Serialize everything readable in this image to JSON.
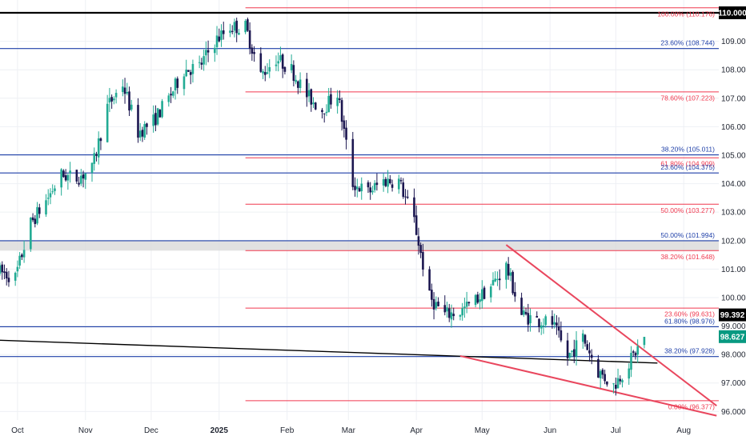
{
  "chart_data": {
    "type": "candlestick",
    "title": "",
    "ylim": [
      95.7,
      110.45
    ],
    "xlim": [
      "2024-09-23",
      "2025-08-17"
    ],
    "y_ticks": [
      "96.000",
      "97.000",
      "98.000",
      "99.000",
      "100.000",
      "101.000",
      "102.000",
      "103.000",
      "104.000",
      "105.000",
      "106.000",
      "107.000",
      "108.000",
      "109.000"
    ],
    "y_tick_values": [
      96,
      97,
      98,
      99,
      100,
      101,
      102,
      103,
      104,
      105,
      106,
      107,
      108,
      109
    ],
    "x_ticks": [
      {
        "label": "Oct",
        "date": "2024-10-01",
        "bold": false
      },
      {
        "label": "Nov",
        "date": "2024-11-01",
        "bold": false
      },
      {
        "label": "Dec",
        "date": "2024-12-01",
        "bold": false
      },
      {
        "label": "2025",
        "date": "2025-01-01",
        "bold": true
      },
      {
        "label": "Feb",
        "date": "2025-02-01",
        "bold": false
      },
      {
        "label": "Mar",
        "date": "2025-03-01",
        "bold": false
      },
      {
        "label": "Apr",
        "date": "2025-04-01",
        "bold": false
      },
      {
        "label": "May",
        "date": "2025-05-01",
        "bold": false
      },
      {
        "label": "Jun",
        "date": "2025-06-01",
        "bold": false
      },
      {
        "label": "Jul",
        "date": "2025-07-01",
        "bold": false
      },
      {
        "label": "Aug",
        "date": "2025-08-01",
        "bold": false
      }
    ],
    "price_path": [
      [
        "2024-09-23",
        100.9
      ],
      [
        "2024-09-30",
        100.7
      ],
      [
        "2024-10-07",
        102.6
      ],
      [
        "2024-10-14",
        103.4
      ],
      [
        "2024-10-21",
        104.3
      ],
      [
        "2024-10-28",
        104.2
      ],
      [
        "2024-11-04",
        104.5
      ],
      [
        "2024-11-11",
        106.7
      ],
      [
        "2024-11-18",
        107.5
      ],
      [
        "2024-11-25",
        105.8
      ],
      [
        "2024-12-02",
        106.2
      ],
      [
        "2024-12-09",
        107.0
      ],
      [
        "2024-12-16",
        108.0
      ],
      [
        "2024-12-23",
        108.1
      ],
      [
        "2024-12-30",
        109.0
      ],
      [
        "2025-01-06",
        109.5
      ],
      [
        "2025-01-13",
        109.5
      ],
      [
        "2025-01-20",
        107.8
      ],
      [
        "2025-01-27",
        108.4
      ],
      [
        "2025-02-03",
        108.0
      ],
      [
        "2025-02-10",
        107.1
      ],
      [
        "2025-02-17",
        106.6
      ],
      [
        "2025-02-24",
        107.2
      ],
      [
        "2025-03-03",
        104.0
      ],
      [
        "2025-03-10",
        103.7
      ],
      [
        "2025-03-17",
        104.1
      ],
      [
        "2025-03-24",
        104.1
      ],
      [
        "2025-03-31",
        102.7
      ],
      [
        "2025-04-07",
        100.0
      ],
      [
        "2025-04-14",
        99.4
      ],
      [
        "2025-04-21",
        99.5
      ],
      [
        "2025-04-28",
        99.9
      ],
      [
        "2025-05-05",
        100.4
      ],
      [
        "2025-05-12",
        101.1
      ],
      [
        "2025-05-19",
        99.4
      ],
      [
        "2025-05-26",
        99.2
      ],
      [
        "2025-06-02",
        99.1
      ],
      [
        "2025-06-09",
        97.9
      ],
      [
        "2025-06-16",
        98.6
      ],
      [
        "2025-06-23",
        97.4
      ],
      [
        "2025-06-30",
        96.9
      ],
      [
        "2025-07-07",
        97.7
      ],
      [
        "2025-07-14",
        98.6
      ]
    ],
    "candle_colors": {
      "up": "#22ab94",
      "down": "#1b1650"
    },
    "fib_levels_red": [
      {
        "label": "100.00% (110.176)",
        "value": 110.176,
        "from": "2025-01-13"
      },
      {
        "label": "78.60% (107.223)",
        "value": 107.223,
        "from": "2025-01-13"
      },
      {
        "label": "61.80% (104.909)",
        "value": 104.909,
        "from": "2025-01-13"
      },
      {
        "label": "50.00% (103.277)",
        "value": 103.277,
        "from": "2025-01-13"
      },
      {
        "label": "38.20% (101.648)",
        "value": 101.648,
        "from": "2025-01-13"
      },
      {
        "label": "23.60% (99.631)",
        "value": 99.631,
        "from": "2025-01-13"
      },
      {
        "label": "0.00% (96.377)",
        "value": 96.377,
        "from": "2025-01-13"
      }
    ],
    "fib_levels_blue": [
      {
        "label": "23.60% (108.744)",
        "value": 108.744
      },
      {
        "label": "38.20% (105.011)",
        "value": 105.011
      },
      {
        "label": "23.60% (104.375)",
        "value": 104.375
      },
      {
        "label": "50.00% (101.994)",
        "value": 101.994
      },
      {
        "label": "61.80% (98.976)",
        "value": 98.976
      },
      {
        "label": "38.20% (97.928)",
        "value": 97.928
      }
    ],
    "resistance_zone": [
      101.648,
      101.994
    ],
    "horizontal_black": {
      "value": 110.0
    },
    "trendline_black": {
      "from": [
        "2024-09-23",
        98.5
      ],
      "to": [
        "2025-07-20",
        97.7
      ]
    },
    "wedge_upper": {
      "from": [
        "2025-05-12",
        101.85
      ],
      "to": [
        "2025-08-16",
        96.2
      ]
    },
    "wedge_lower": {
      "from": [
        "2025-04-21",
        97.95
      ],
      "to": [
        "2025-08-16",
        95.85
      ]
    },
    "price_tags": [
      {
        "label": "110.000",
        "value": 110.0,
        "bg": "#000000",
        "fg": "#ffffff"
      },
      {
        "label": "99.392",
        "value": 99.392,
        "bg": "#000000",
        "fg": "#ffffff"
      },
      {
        "label": "98.627",
        "value": 98.627,
        "bg": "#089981",
        "fg": "#ffffff"
      }
    ],
    "colors": {
      "fib_red": "#f0394f",
      "fib_blue": "#1e3fa8",
      "wedge": "#e9475e",
      "grid": "#eef0f4",
      "zone": "#d9d9d9",
      "axis_text": "#1f2430"
    }
  }
}
